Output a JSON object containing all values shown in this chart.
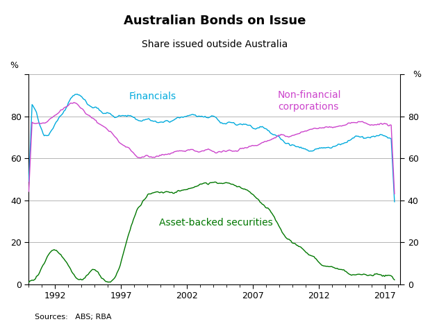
{
  "title": "Australian Bonds on Issue",
  "subtitle": "Share issued outside Australia",
  "ylabel_left": "%",
  "ylabel_right": "%",
  "source": "Sources:   ABS; RBA",
  "xlim": [
    1990.0,
    2018.2
  ],
  "ylim": [
    0,
    100
  ],
  "yticks": [
    0,
    20,
    40,
    60,
    80,
    100
  ],
  "yticklabels": [
    "0",
    "20",
    "40",
    "60",
    "80",
    ""
  ],
  "xticks": [
    1992,
    1997,
    2002,
    2007,
    2012,
    2017
  ],
  "financials_color": "#00AADD",
  "nonfinancial_color": "#CC44CC",
  "abs_color": "#007700",
  "background_color": "#FFFFFF",
  "grid_color": "#AAAAAA",
  "financials_label": "Financials",
  "nonfinancial_label": "Non-financial\ncorporations",
  "abs_label": "Asset-backed securities"
}
